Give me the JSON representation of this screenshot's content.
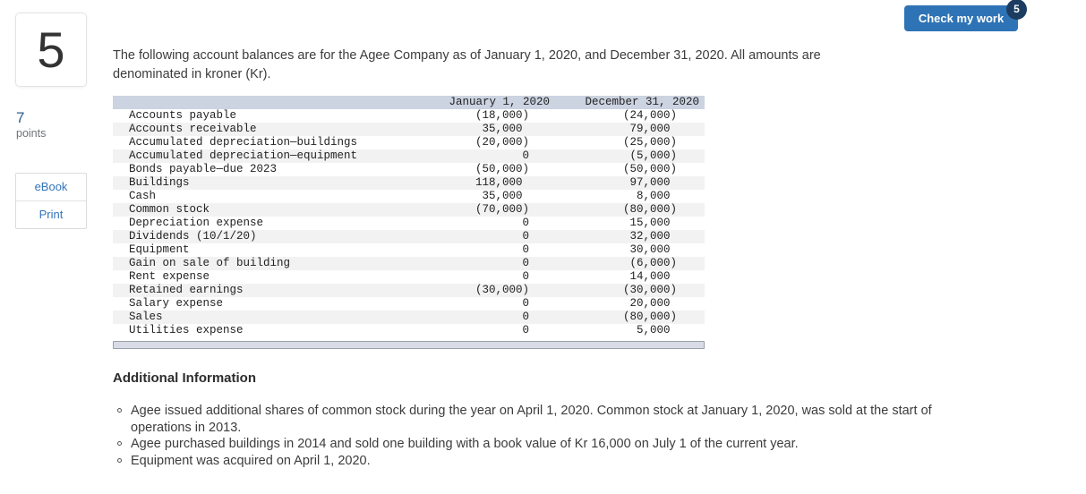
{
  "header": {
    "check_work_label": "Check my work",
    "attempts_badge": "5"
  },
  "sidebar": {
    "question_number": "5",
    "points_value": "7",
    "points_label": "points",
    "ebook_label": "eBook",
    "print_label": "Print"
  },
  "question": {
    "intro": "The following account balances are for the Agee Company as of January 1, 2020, and December 31, 2020. All amounts are denominated in kroner (Kr).",
    "additional_info_heading": "Additional Information",
    "bullets": [
      "Agee issued additional shares of common stock during the year on April 1, 2020. Common stock at January 1, 2020, was sold at the start of operations in 2013.",
      "Agee purchased buildings in 2014 and sold one building with a book value of Kr 16,000 on July 1 of the current year.",
      "Equipment was acquired on April 1, 2020."
    ]
  },
  "table": {
    "columns": [
      "January 1, 2020",
      "December 31, 2020"
    ],
    "rows": [
      {
        "name": "Accounts payable",
        "jan": "(18,000)",
        "dec": "(24,000)"
      },
      {
        "name": "Accounts receivable",
        "jan": "35,000",
        "dec": "79,000"
      },
      {
        "name": "Accumulated depreciation—buildings",
        "jan": "(20,000)",
        "dec": "(25,000)"
      },
      {
        "name": "Accumulated depreciation—equipment",
        "jan": "0",
        "dec": "(5,000)"
      },
      {
        "name": "Bonds payable—due 2023",
        "jan": "(50,000)",
        "dec": "(50,000)"
      },
      {
        "name": "Buildings",
        "jan": "118,000",
        "dec": "97,000"
      },
      {
        "name": "Cash",
        "jan": "35,000",
        "dec": "8,000"
      },
      {
        "name": "Common stock",
        "jan": "(70,000)",
        "dec": "(80,000)"
      },
      {
        "name": "Depreciation expense",
        "jan": "0",
        "dec": "15,000"
      },
      {
        "name": "Dividends (10/1/20)",
        "jan": "0",
        "dec": "32,000"
      },
      {
        "name": "Equipment",
        "jan": "0",
        "dec": "30,000"
      },
      {
        "name": "Gain on sale of building",
        "jan": "0",
        "dec": "(6,000)"
      },
      {
        "name": "Rent expense",
        "jan": "0",
        "dec": "14,000"
      },
      {
        "name": "Retained earnings",
        "jan": "(30,000)",
        "dec": "(30,000)"
      },
      {
        "name": "Salary expense",
        "jan": "0",
        "dec": "20,000"
      },
      {
        "name": "Sales",
        "jan": "0",
        "dec": "(80,000)"
      },
      {
        "name": "Utilities expense",
        "jan": "0",
        "dec": "5,000"
      }
    ]
  },
  "colors": {
    "accent_blue": "#2e73b5",
    "badge_navy": "#1c3d61",
    "link_blue": "#3474b9",
    "table_header_bg": "#ccd3e1",
    "row_stripe": "#f2f2f2"
  }
}
